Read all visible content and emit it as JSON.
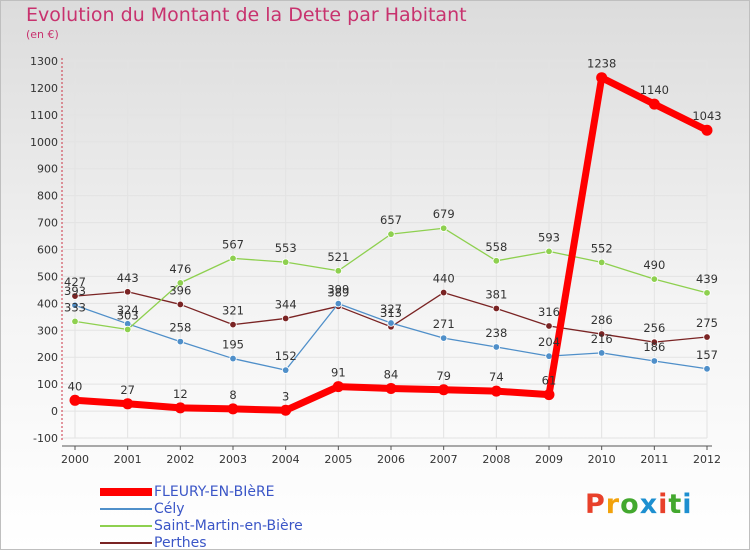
{
  "header": {
    "title": "Evolution du Montant de la Dette par Habitant",
    "subtitle": "(en €)"
  },
  "logo": {
    "text": "Proxiti",
    "colors": [
      "#e8402a",
      "#f2a20c",
      "#43a82e",
      "#1d8fd0",
      "#e8402a",
      "#43a82e",
      "#1d8fd0"
    ]
  },
  "chart_data": {
    "type": "line",
    "x": [
      "2000",
      "2001",
      "2002",
      "2003",
      "2004",
      "2005",
      "2006",
      "2007",
      "2008",
      "2009",
      "2010",
      "2011",
      "2012"
    ],
    "ylim": [
      -100,
      1300
    ],
    "yticks": [
      "-100",
      "0",
      "100",
      "200",
      "300",
      "400",
      "500",
      "600",
      "700",
      "800",
      "900",
      "1000",
      "1100",
      "1200",
      "1300"
    ],
    "grid": true,
    "legend_position": "bottom-left",
    "series": [
      {
        "name": "FLEURY-EN-BIèRE",
        "color": "#ff0000",
        "values": [
          40,
          27,
          12,
          8,
          3,
          91,
          84,
          79,
          74,
          61,
          1238,
          1140,
          1043
        ],
        "labels": [
          "40",
          "27",
          "12",
          "8",
          "3",
          "91",
          "84",
          "79",
          "74",
          "61",
          "1238",
          "1140",
          "1043"
        ]
      },
      {
        "name": "Cély",
        "color": "#4f8fc9",
        "values": [
          393,
          324,
          258,
          195,
          152,
          399,
          327,
          271,
          238,
          204,
          216,
          186,
          157
        ],
        "labels": [
          "393",
          "324",
          "258",
          "195",
          "152",
          "399",
          "327",
          "271",
          "238",
          "204",
          "216",
          "186",
          "157"
        ]
      },
      {
        "name": "Saint-Martin-en-Bière",
        "color": "#8ed04f",
        "values": [
          333,
          303,
          476,
          567,
          553,
          521,
          657,
          679,
          558,
          593,
          552,
          490,
          439
        ],
        "labels": [
          "333",
          "303",
          "476",
          "567",
          "553",
          "521",
          "657",
          "679",
          "558",
          "593",
          "552",
          "490",
          "439"
        ]
      },
      {
        "name": "Perthes",
        "color": "#7a2424",
        "values": [
          427,
          443,
          396,
          321,
          344,
          389,
          313,
          440,
          381,
          316,
          286,
          256,
          275
        ],
        "labels": [
          "427",
          "443",
          "396",
          "321",
          "344",
          "389",
          "313",
          "440",
          "381",
          "316",
          "286",
          "256",
          "275"
        ]
      }
    ]
  }
}
